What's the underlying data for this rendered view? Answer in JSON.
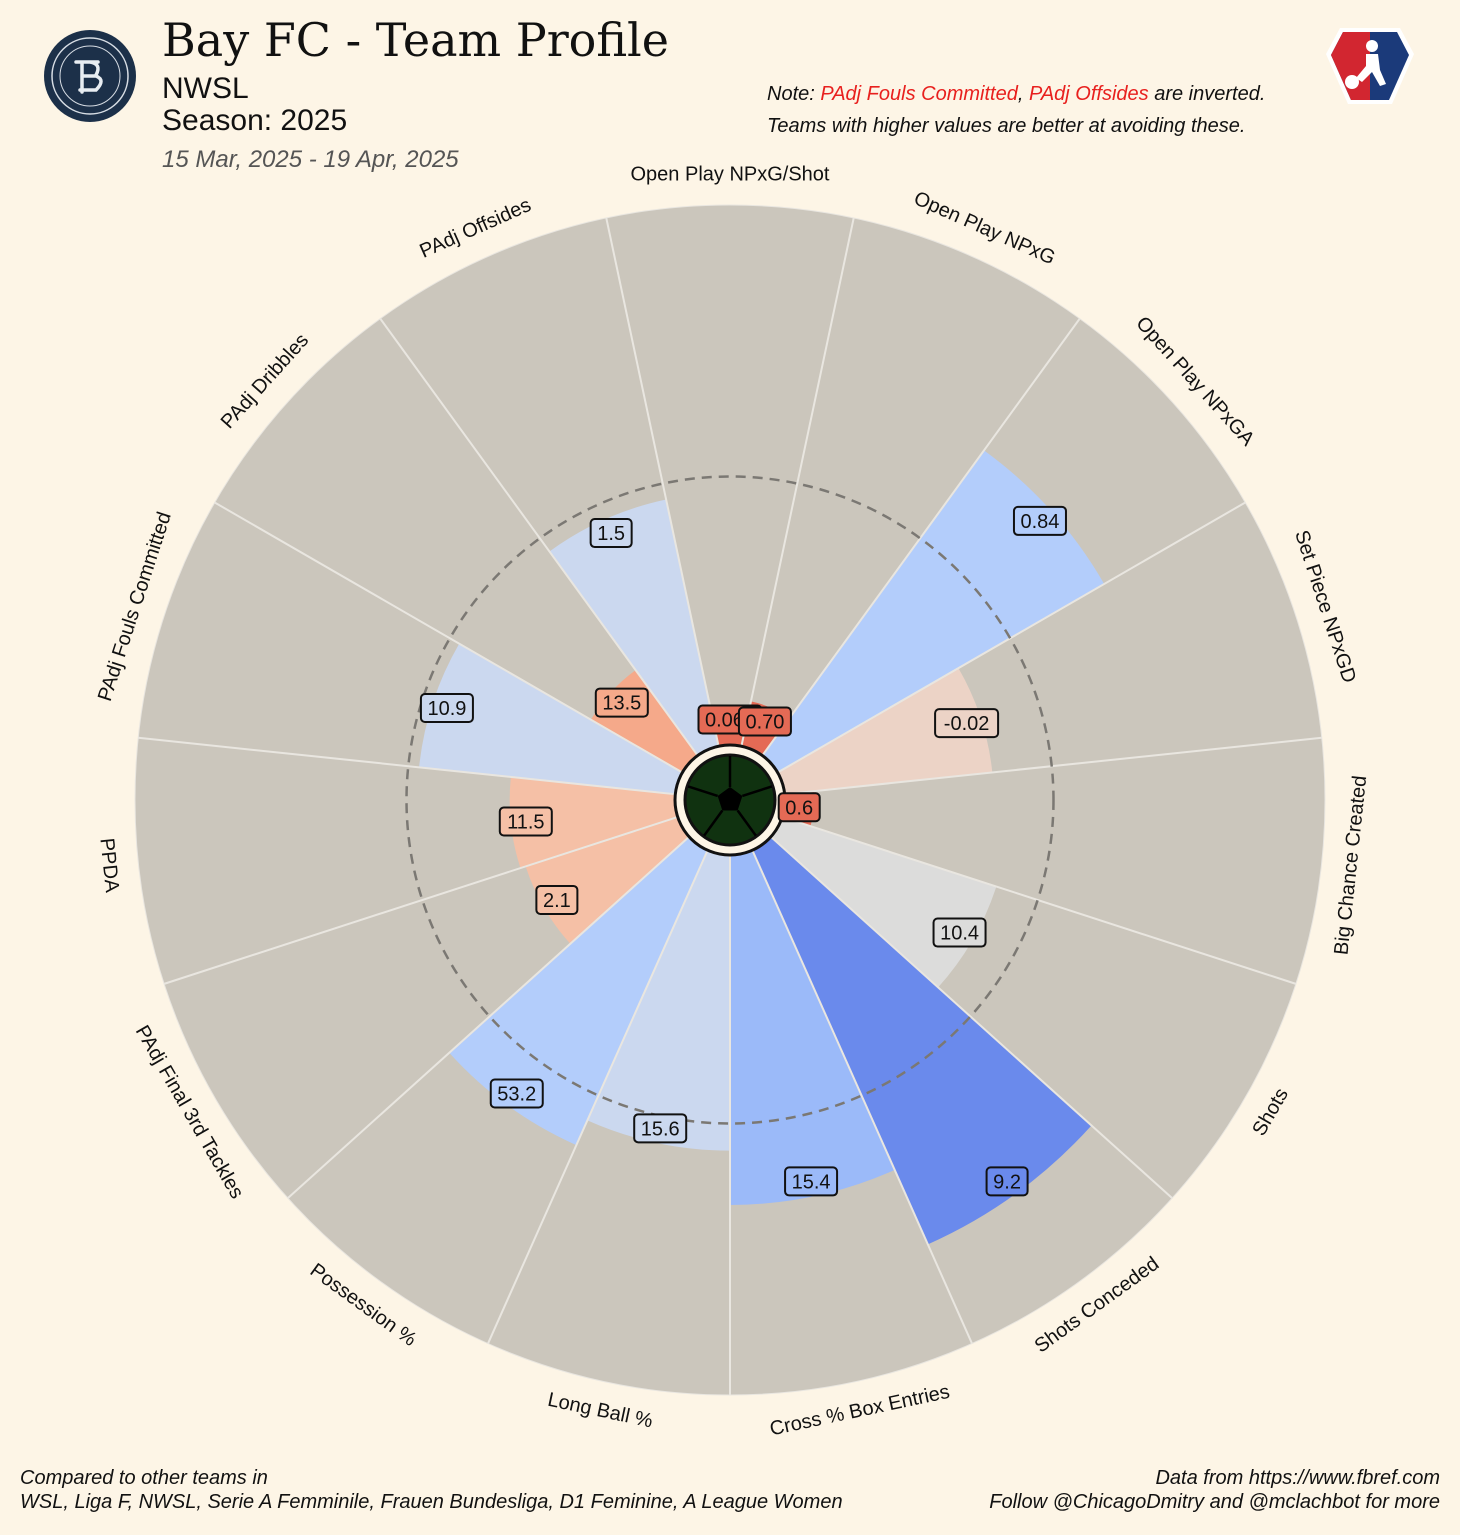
{
  "header": {
    "title": "Bay FC - Team Profile",
    "league": "NWSL",
    "season": "Season: 2025",
    "date_range": "15 Mar, 2025 - 19 Apr, 2025",
    "note_prefix": "Note: ",
    "note_inverted_1": "PAdj Fouls Committed",
    "note_sep": ", ",
    "note_inverted_2": "PAdj Offsides",
    "note_suffix": " are inverted.",
    "note_line2": "Teams with higher values are better at avoiding these."
  },
  "logos": {
    "club_logo": "Bay FC crest",
    "league_logo": "NWSL logo"
  },
  "footer": {
    "left_line1": "Compared to other teams in",
    "left_line2": "WSL, Liga F, NWSL, Serie A Femminile, Frauen Bundesliga, D1 Feminine, A League Women",
    "right_line1": "Data from https://www.fbref.com",
    "right_line2": "Follow @ChicagoDmitry and @mclachbot for more"
  },
  "chart_data": {
    "type": "radar",
    "scale": "percentile",
    "range": [
      0,
      100
    ],
    "reference_ring": 50,
    "reference_ring_style": "dashed",
    "background_color": "#cbc6bc",
    "categories": [
      {
        "label": "Open Play NPxG/Shot",
        "value_text": "0.067",
        "percentile": 8,
        "color": "#e46a55"
      },
      {
        "label": "Open Play NPxG",
        "value_text": "0.70",
        "percentile": 9,
        "color": "#e46a55"
      },
      {
        "label": "Open Play NPxGA",
        "value_text": "0.84",
        "percentile": 70,
        "color": "#b3cdfb"
      },
      {
        "label": "Set Piece NPxGD",
        "value_text": "-0.02",
        "percentile": 39,
        "color": "#ecd3c6"
      },
      {
        "label": "Big Chance Created",
        "value_text": "0.6",
        "percentile": 6,
        "color": "#e46a55"
      },
      {
        "label": "Shots",
        "value_text": "10.4",
        "percentile": 42,
        "color": "#dcdcdb"
      },
      {
        "label": "Shots Conceded",
        "value_text": "9.2",
        "percentile": 80,
        "color": "#6a8aec"
      },
      {
        "label": "Cross % Box Entries",
        "value_text": "15.4",
        "percentile": 65,
        "color": "#9bbaf9"
      },
      {
        "label": "Long Ball %",
        "value_text": "15.6",
        "percentile": 55,
        "color": "#cbd8ef"
      },
      {
        "label": "Possession %",
        "value_text": "53.2",
        "percentile": 60,
        "color": "#b3cdfb"
      },
      {
        "label": "PAdj Final 3rd Tackles",
        "value_text": "2.1",
        "percentile": 30,
        "color": "#f5c0a6"
      },
      {
        "label": "PPDA",
        "value_text": "11.5",
        "percentile": 31,
        "color": "#f5c0a6"
      },
      {
        "label": "PAdj Fouls Committed",
        "value_text": "10.9",
        "percentile": 48,
        "color": "#cbd8ef"
      },
      {
        "label": "PAdj Dribbles",
        "value_text": "13.5",
        "percentile": 20,
        "color": "#f5a98a"
      },
      {
        "label": "PAdj Offsides",
        "value_text": "1.5",
        "percentile": 47,
        "color": "#cbd8ef"
      }
    ]
  }
}
